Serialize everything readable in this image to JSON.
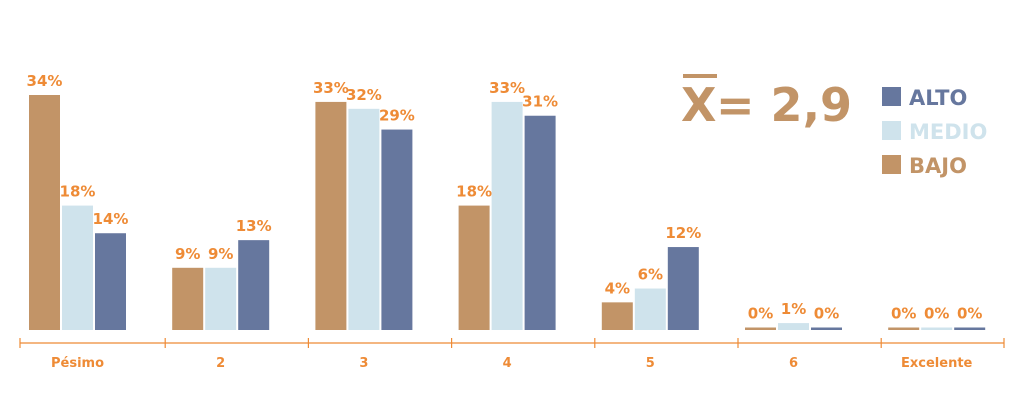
{
  "chart_data": {
    "type": "bar",
    "categories": [
      "Pésimo",
      "2",
      "3",
      "4",
      "5",
      "6",
      "Excelente"
    ],
    "series": [
      {
        "name": "BAJO",
        "color": "#c29467",
        "values": [
          34,
          9,
          33,
          18,
          4,
          0,
          0
        ],
        "labels": [
          "34%",
          "9%",
          "33%",
          "18%",
          "4%",
          "0%",
          "0%"
        ]
      },
      {
        "name": "MEDIO",
        "color": "#cfe3ec",
        "values": [
          18,
          9,
          32,
          33,
          6,
          1,
          0
        ],
        "labels": [
          "18%",
          "9%",
          "32%",
          "33%",
          "6%",
          "1%",
          "0%"
        ]
      },
      {
        "name": "ALTO",
        "color": "#66779e",
        "values": [
          14,
          13,
          29,
          31,
          12,
          0,
          0
        ],
        "labels": [
          "14%",
          "13%",
          "29%",
          "31%",
          "12%",
          "0%",
          "0%"
        ]
      }
    ],
    "ylim": [
      0,
      34
    ],
    "grid": false,
    "legend": {
      "position": "top-right",
      "order": [
        "ALTO",
        "MEDIO",
        "BAJO"
      ]
    },
    "annotation": {
      "symbol": "X",
      "text": "= 2,9"
    },
    "axis_color": "#ee8b36",
    "label_color": "#ee8b36"
  }
}
